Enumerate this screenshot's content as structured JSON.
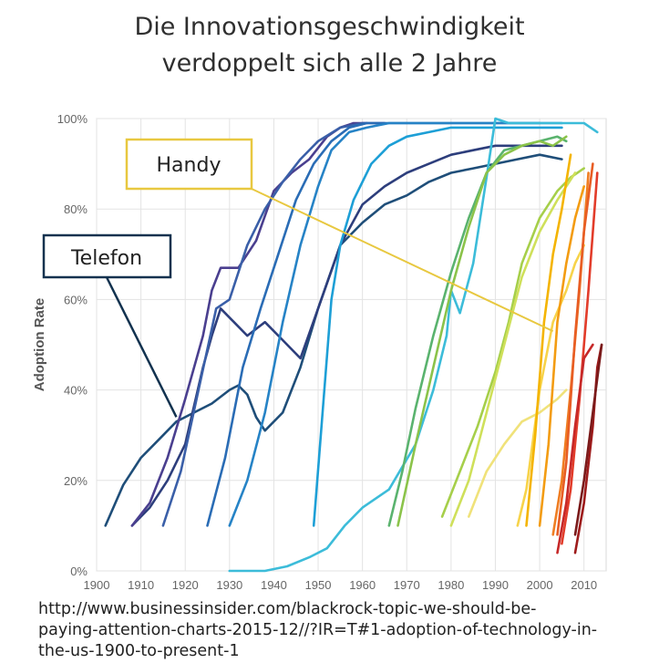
{
  "header": {
    "title_line1": "Die Innovationsgeschwindigkeit",
    "title_line2": "verdoppelt sich alle 2 Jahre"
  },
  "source": {
    "line1": "http://www.businessinsider.com/blackrock-topic-we-should-be-",
    "line2": "paying-attention-charts-2015-12//?IR=T#1-adoption-of-technology-in-",
    "line3": "the-us-1900-to-present-1"
  },
  "callouts": [
    {
      "label": "Handy",
      "color": "#e8c840",
      "points_to": [
        2003,
        53
      ]
    },
    {
      "label": "Telefon",
      "color": "#12324f",
      "points_to": [
        1918,
        34
      ]
    }
  ],
  "chart_data": {
    "type": "line",
    "title": "",
    "xlabel": "",
    "ylabel": "Adoption Rate",
    "xlim": [
      1900,
      2015
    ],
    "ylim": [
      0,
      100
    ],
    "x_ticks": [
      1900,
      1910,
      1920,
      1930,
      1940,
      1950,
      1960,
      1970,
      1980,
      1990,
      2000,
      2010
    ],
    "y_ticks": [
      0,
      20,
      40,
      60,
      80,
      100
    ],
    "y_tick_labels": [
      "0%",
      "20%",
      "40%",
      "60%",
      "80%",
      "100%"
    ],
    "grid": true,
    "legend": "none",
    "series": [
      {
        "color": "#1f4e79",
        "x": [
          1902,
          1906,
          1910,
          1914,
          1918,
          1922,
          1926,
          1930,
          1932,
          1934,
          1936,
          1938,
          1942,
          1946,
          1950,
          1955,
          1960,
          1965,
          1970,
          1975,
          1980,
          1985,
          1990,
          1995,
          2000,
          2005
        ],
        "y": [
          10,
          19,
          25,
          29,
          33,
          35,
          37,
          40,
          41,
          39,
          34,
          31,
          35,
          45,
          58,
          72,
          77,
          81,
          83,
          86,
          88,
          89,
          90,
          91,
          92,
          91
        ]
      },
      {
        "color": "#2d3e7c",
        "x": [
          1908,
          1912,
          1916,
          1920,
          1924,
          1926,
          1928,
          1931,
          1934,
          1938,
          1942,
          1946,
          1950,
          1955,
          1960,
          1965,
          1970,
          1975,
          1980,
          1985,
          1990,
          1995,
          2000,
          2005
        ],
        "y": [
          10,
          14,
          20,
          28,
          45,
          52,
          58,
          55,
          52,
          55,
          51,
          47,
          58,
          72,
          81,
          85,
          88,
          90,
          92,
          93,
          94,
          94,
          94,
          94
        ]
      },
      {
        "color": "#4a3f8f",
        "x": [
          1908,
          1912,
          1916,
          1920,
          1924,
          1926,
          1928,
          1932,
          1936,
          1940,
          1944,
          1948,
          1952,
          1955,
          1958,
          1961
        ],
        "y": [
          10,
          15,
          25,
          38,
          52,
          62,
          67,
          67,
          73,
          84,
          88,
          91,
          96,
          98,
          99,
          99
        ]
      },
      {
        "color": "#3a5fa8",
        "x": [
          1915,
          1919,
          1923,
          1927,
          1930,
          1934,
          1938,
          1942,
          1946,
          1950,
          1955,
          1960,
          1965
        ],
        "y": [
          10,
          22,
          40,
          58,
          60,
          72,
          80,
          86,
          91,
          95,
          98,
          99,
          99
        ]
      },
      {
        "color": "#2a6cb5",
        "x": [
          1925,
          1929,
          1933,
          1937,
          1941,
          1945,
          1949,
          1953,
          1957,
          1961,
          1965,
          1970,
          1980,
          1990,
          2000
        ],
        "y": [
          10,
          25,
          45,
          58,
          70,
          82,
          90,
          95,
          98,
          99,
          99,
          99,
          99,
          99,
          99
        ]
      },
      {
        "color": "#2683c6",
        "x": [
          1930,
          1934,
          1938,
          1942,
          1946,
          1950,
          1953,
          1957,
          1961,
          1966,
          1970,
          1980,
          1990,
          2005
        ],
        "y": [
          10,
          20,
          35,
          55,
          72,
          85,
          93,
          97,
          98,
          99,
          99,
          99,
          99,
          99
        ]
      },
      {
        "color": "#1d9fd6",
        "x": [
          1949,
          1951,
          1953,
          1955,
          1958,
          1962,
          1966,
          1970,
          1975,
          1980,
          1985,
          1990,
          2005
        ],
        "y": [
          10,
          35,
          60,
          72,
          82,
          90,
          94,
          96,
          97,
          98,
          98,
          98,
          98
        ]
      },
      {
        "color": "#3cbcd9",
        "x": [
          1930,
          1938,
          1943,
          1948,
          1952,
          1956,
          1960,
          1966,
          1972,
          1976,
          1979,
          1980,
          1982,
          1985,
          1988,
          1990,
          1993,
          1996,
          2000,
          2005,
          2010,
          2013
        ],
        "y": [
          0,
          0,
          1,
          3,
          5,
          10,
          14,
          18,
          28,
          40,
          52,
          62,
          57,
          68,
          87,
          100,
          99,
          99,
          99,
          99,
          99,
          97
        ]
      },
      {
        "color": "#5ab36e",
        "x": [
          1966,
          1969,
          1972,
          1976,
          1980,
          1984,
          1988,
          1992,
          1996,
          2000,
          2004,
          2006
        ],
        "y": [
          10,
          22,
          36,
          52,
          66,
          78,
          88,
          93,
          94,
          95,
          96,
          95
        ]
      },
      {
        "color": "#8bc34a",
        "x": [
          1968,
          1972,
          1976,
          1980,
          1984,
          1988,
          1992,
          1996,
          2000,
          2003,
          2006
        ],
        "y": [
          10,
          28,
          45,
          62,
          76,
          88,
          92,
          94,
          95,
          94,
          96
        ]
      },
      {
        "color": "#a6cf4a",
        "x": [
          1978,
          1982,
          1986,
          1990,
          1993,
          1996,
          2000,
          2004,
          2007,
          2010
        ],
        "y": [
          12,
          22,
          32,
          44,
          55,
          68,
          78,
          84,
          87,
          89
        ]
      },
      {
        "color": "#cfe05a",
        "x": [
          1980,
          1984,
          1988,
          1992,
          1996,
          2000,
          2004,
          2008
        ],
        "y": [
          10,
          20,
          35,
          50,
          65,
          75,
          82,
          88
        ]
      },
      {
        "color": "#f0e27a",
        "x": [
          1984,
          1988,
          1992,
          1996,
          2000,
          2004,
          2006
        ],
        "y": [
          12,
          22,
          28,
          33,
          35,
          38,
          40
        ]
      },
      {
        "color": "#f7d34a",
        "x": [
          1995,
          1997,
          2000,
          2003,
          2006,
          2008,
          2010
        ],
        "y": [
          10,
          18,
          40,
          55,
          62,
          68,
          72
        ]
      },
      {
        "color": "#f4b400",
        "x": [
          1997,
          1999,
          2001,
          2003,
          2005,
          2007
        ],
        "y": [
          10,
          30,
          55,
          70,
          80,
          92
        ]
      },
      {
        "color": "#f39c12",
        "x": [
          2000,
          2002,
          2004,
          2006,
          2008,
          2010
        ],
        "y": [
          10,
          28,
          55,
          68,
          78,
          85
        ]
      },
      {
        "color": "#ef7d22",
        "x": [
          2003,
          2005,
          2007,
          2009,
          2011
        ],
        "y": [
          8,
          20,
          40,
          62,
          88
        ]
      },
      {
        "color": "#e85d24",
        "x": [
          2004,
          2006,
          2008,
          2010,
          2012
        ],
        "y": [
          8,
          24,
          52,
          75,
          90
        ]
      },
      {
        "color": "#e23c2a",
        "x": [
          2005,
          2007,
          2009,
          2011,
          2013
        ],
        "y": [
          6,
          18,
          38,
          62,
          88
        ]
      },
      {
        "color": "#c62828",
        "x": [
          2004,
          2006,
          2008,
          2010,
          2012
        ],
        "y": [
          4,
          15,
          32,
          47,
          50
        ]
      },
      {
        "color": "#9e1b1b",
        "x": [
          2008,
          2010,
          2012,
          2013,
          2014
        ],
        "y": [
          4,
          15,
          32,
          45,
          50
        ]
      },
      {
        "color": "#7a1a1a",
        "x": [
          2008,
          2010,
          2012,
          2014
        ],
        "y": [
          8,
          20,
          35,
          50
        ]
      }
    ]
  }
}
